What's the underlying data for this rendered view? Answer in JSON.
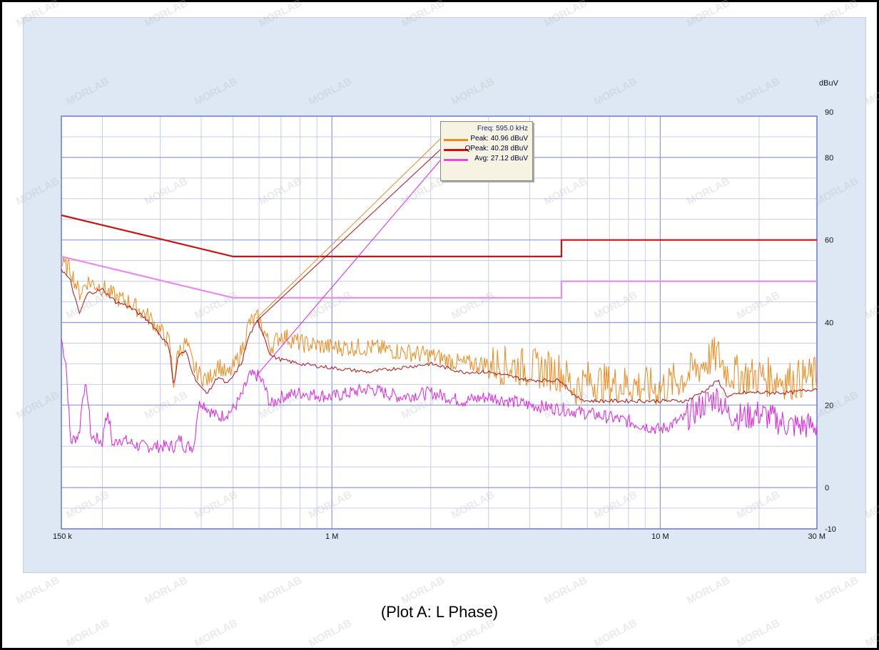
{
  "caption": "(Plot A: L Phase)",
  "watermark": "MORLAB",
  "legend": {
    "freq": "Freq: 595.0 kHz",
    "rows": [
      {
        "text": "Peak: 40.96 dBuV",
        "color": "#ee8a1a"
      },
      {
        "text": "QPeak: 40.28 dBuV",
        "color": "#cc1111"
      },
      {
        "text": "Avg: 27.12 dBuV",
        "color": "#ee44ee"
      }
    ]
  },
  "chart_data": {
    "type": "line",
    "xscale": "log",
    "xlim": [
      150000,
      30000000
    ],
    "ylim": [
      -10,
      90
    ],
    "ylabel": "dBuV",
    "x_ticks": [
      {
        "value": 150000,
        "label": "150 k"
      },
      {
        "value": 1000000,
        "label": "1 M"
      },
      {
        "value": 10000000,
        "label": "10 M"
      },
      {
        "value": 30000000,
        "label": "30 M"
      }
    ],
    "y_ticks": [
      {
        "value": 90,
        "label": "90"
      },
      {
        "value": 80,
        "label": "80"
      },
      {
        "value": 60,
        "label": "60"
      },
      {
        "value": 40,
        "label": "40"
      },
      {
        "value": 20,
        "label": "20"
      },
      {
        "value": 0,
        "label": "0"
      },
      {
        "value": -10,
        "label": "-10"
      }
    ],
    "grid": true,
    "colors": {
      "peak": "#ee8a1a",
      "qpeak": "#b01010",
      "avg": "#dd22dd",
      "qp_limit": "#cc1111",
      "avg_limit": "#ee88ee",
      "grid": "#9aa6e6",
      "border": "#6a78cc"
    },
    "limit_lines": [
      {
        "type": "qpeak-limit",
        "points": [
          [
            150000,
            66
          ],
          [
            500000,
            56
          ],
          [
            5000000,
            56
          ],
          [
            5000000,
            60
          ],
          [
            30000000,
            60
          ]
        ]
      },
      {
        "type": "avg-limit",
        "points": [
          [
            150000,
            56
          ],
          [
            500000,
            46
          ],
          [
            5000000,
            46
          ],
          [
            5000000,
            50
          ],
          [
            30000000,
            50
          ]
        ]
      }
    ],
    "marker_freq": 595000,
    "series": [
      {
        "type": "peak",
        "points": [
          [
            150000,
            54
          ],
          [
            160000,
            53
          ],
          [
            170000,
            47
          ],
          [
            180000,
            50
          ],
          [
            200000,
            48.5
          ],
          [
            220000,
            46
          ],
          [
            240000,
            45
          ],
          [
            260000,
            43
          ],
          [
            280000,
            41
          ],
          [
            300000,
            38
          ],
          [
            320000,
            35
          ],
          [
            330000,
            25
          ],
          [
            340000,
            33
          ],
          [
            360000,
            35
          ],
          [
            380000,
            29
          ],
          [
            400000,
            27
          ],
          [
            420000,
            26
          ],
          [
            450000,
            30
          ],
          [
            480000,
            27
          ],
          [
            500000,
            29
          ],
          [
            530000,
            33
          ],
          [
            560000,
            40
          ],
          [
            595000,
            41
          ],
          [
            620000,
            38
          ],
          [
            650000,
            34
          ],
          [
            700000,
            37
          ],
          [
            800000,
            35
          ],
          [
            1000000,
            34
          ],
          [
            1300000,
            34
          ],
          [
            1600000,
            33
          ],
          [
            2000000,
            32
          ],
          [
            2500000,
            30
          ],
          [
            3000000,
            30
          ],
          [
            4000000,
            29
          ],
          [
            5000000,
            28
          ],
          [
            5500000,
            24
          ],
          [
            6000000,
            26
          ],
          [
            7000000,
            25
          ],
          [
            8000000,
            25
          ],
          [
            10000000,
            24
          ],
          [
            12000000,
            27
          ],
          [
            14000000,
            31
          ],
          [
            15000000,
            32
          ],
          [
            16000000,
            28
          ],
          [
            18000000,
            27
          ],
          [
            20000000,
            27
          ],
          [
            25000000,
            26
          ],
          [
            30000000,
            27
          ]
        ]
      },
      {
        "type": "qpeak",
        "points": [
          [
            150000,
            53
          ],
          [
            160000,
            50
          ],
          [
            170000,
            42
          ],
          [
            180000,
            47
          ],
          [
            200000,
            48
          ],
          [
            220000,
            45
          ],
          [
            240000,
            44
          ],
          [
            260000,
            42
          ],
          [
            280000,
            40
          ],
          [
            300000,
            37
          ],
          [
            320000,
            34
          ],
          [
            330000,
            24
          ],
          [
            340000,
            32
          ],
          [
            360000,
            33
          ],
          [
            380000,
            27
          ],
          [
            400000,
            24
          ],
          [
            420000,
            23
          ],
          [
            450000,
            27
          ],
          [
            480000,
            25
          ],
          [
            500000,
            27
          ],
          [
            530000,
            30
          ],
          [
            560000,
            37
          ],
          [
            595000,
            40.3
          ],
          [
            620000,
            37
          ],
          [
            650000,
            32
          ],
          [
            700000,
            31
          ],
          [
            800000,
            30
          ],
          [
            1000000,
            29
          ],
          [
            1300000,
            28
          ],
          [
            1600000,
            29
          ],
          [
            2000000,
            30
          ],
          [
            2500000,
            28
          ],
          [
            3000000,
            28
          ],
          [
            4000000,
            26
          ],
          [
            5000000,
            26
          ],
          [
            5500000,
            22
          ],
          [
            6000000,
            21
          ],
          [
            7000000,
            21
          ],
          [
            8000000,
            21
          ],
          [
            10000000,
            21
          ],
          [
            12000000,
            21
          ],
          [
            14000000,
            24
          ],
          [
            15000000,
            26
          ],
          [
            16000000,
            22
          ],
          [
            18000000,
            23
          ],
          [
            20000000,
            23
          ],
          [
            25000000,
            23
          ],
          [
            30000000,
            24
          ]
        ]
      },
      {
        "type": "avg",
        "points": [
          [
            150000,
            36
          ],
          [
            155000,
            30
          ],
          [
            160000,
            11
          ],
          [
            170000,
            13
          ],
          [
            175000,
            24
          ],
          [
            180000,
            23
          ],
          [
            185000,
            12
          ],
          [
            190000,
            12
          ],
          [
            200000,
            11
          ],
          [
            205000,
            18
          ],
          [
            210000,
            16
          ],
          [
            215000,
            10
          ],
          [
            225000,
            12
          ],
          [
            240000,
            11
          ],
          [
            260000,
            10
          ],
          [
            300000,
            10
          ],
          [
            330000,
            10
          ],
          [
            340000,
            11
          ],
          [
            345000,
            12
          ],
          [
            350000,
            11
          ],
          [
            355000,
            10
          ],
          [
            380000,
            10
          ],
          [
            390000,
            19
          ],
          [
            400000,
            21
          ],
          [
            420000,
            19
          ],
          [
            450000,
            17
          ],
          [
            480000,
            18
          ],
          [
            500000,
            19
          ],
          [
            530000,
            22
          ],
          [
            560000,
            27
          ],
          [
            595000,
            27.1
          ],
          [
            620000,
            25
          ],
          [
            650000,
            20
          ],
          [
            700000,
            22
          ],
          [
            800000,
            23
          ],
          [
            1000000,
            22
          ],
          [
            1300000,
            24
          ],
          [
            1600000,
            22
          ],
          [
            2000000,
            23
          ],
          [
            2500000,
            21
          ],
          [
            3000000,
            22
          ],
          [
            4000000,
            20
          ],
          [
            5000000,
            19
          ],
          [
            6000000,
            18
          ],
          [
            7000000,
            17
          ],
          [
            8000000,
            16
          ],
          [
            10000000,
            14
          ],
          [
            12000000,
            17
          ],
          [
            14000000,
            21
          ],
          [
            15000000,
            22
          ],
          [
            16000000,
            18
          ],
          [
            18000000,
            17
          ],
          [
            20000000,
            18
          ],
          [
            25000000,
            15
          ],
          [
            30000000,
            15
          ]
        ]
      }
    ]
  }
}
